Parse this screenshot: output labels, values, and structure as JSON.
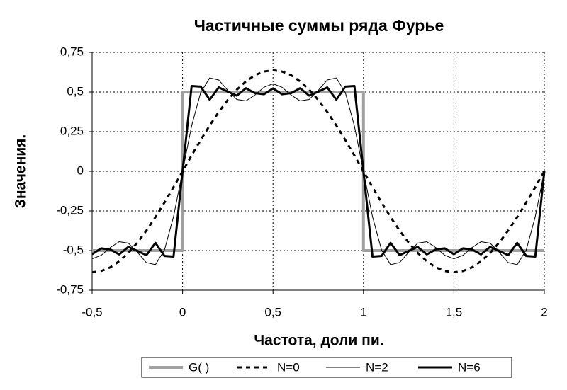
{
  "chart_data": {
    "type": "line",
    "title": "Частичные суммы ряда Фурье",
    "x_label": "Частота, доли пи.",
    "y_label": "Значения.",
    "xlim": [
      -0.5,
      2
    ],
    "ylim": [
      -0.75,
      0.75
    ],
    "xticks": [
      {
        "value": -0.5,
        "label": "-0,5"
      },
      0,
      {
        "value": 0.5,
        "label": "0,5"
      },
      1,
      {
        "value": 1.5,
        "label": "1,5"
      },
      2
    ],
    "yticks": [
      {
        "value": -0.75,
        "label": "-0,75"
      },
      {
        "value": -0.5,
        "label": "-0,5"
      },
      {
        "value": -0.25,
        "label": "-0,25"
      },
      0,
      {
        "value": 0.25,
        "label": "0,25"
      },
      {
        "value": 0.5,
        "label": "0,5"
      },
      {
        "value": 0.75,
        "label": "0,75"
      }
    ],
    "grid": true,
    "legend": "bottom",
    "x": [
      -0.5,
      -0.45,
      -0.4,
      -0.35,
      -0.3,
      -0.25,
      -0.2,
      -0.15,
      -0.1,
      -0.05,
      0,
      0.05,
      0.1,
      0.15,
      0.2,
      0.25,
      0.3,
      0.35,
      0.4,
      0.45,
      0.5,
      0.55,
      0.6,
      0.65,
      0.7,
      0.75,
      0.8,
      0.85,
      0.9,
      0.95,
      1,
      1.05,
      1.1,
      1.15,
      1.2,
      1.25,
      1.3,
      1.35,
      1.4,
      1.45,
      1.5,
      1.55,
      1.6,
      1.65,
      1.7,
      1.75,
      1.8,
      1.85,
      1.9,
      1.95,
      2
    ],
    "series": [
      {
        "name": "G(   )",
        "color": "#a0a0a0",
        "width": 4,
        "dash": "none",
        "x": [
          -0.5,
          0,
          0,
          1,
          1,
          2
        ],
        "values": [
          -0.5,
          -0.5,
          0.5,
          0.5,
          -0.5,
          -0.5
        ]
      },
      {
        "name": "N=0",
        "color": "#000000",
        "width": 3,
        "dash": "6 6",
        "values": [
          -0.637,
          -0.629,
          -0.606,
          -0.567,
          -0.515,
          -0.45,
          -0.374,
          -0.289,
          -0.197,
          -0.1,
          0,
          0.1,
          0.197,
          0.289,
          0.374,
          0.45,
          0.515,
          0.567,
          0.606,
          0.629,
          0.637,
          0.629,
          0.606,
          0.567,
          0.515,
          0.45,
          0.374,
          0.289,
          0.197,
          0.1,
          0,
          -0.1,
          -0.197,
          -0.289,
          -0.374,
          -0.45,
          -0.515,
          -0.567,
          -0.606,
          -0.629,
          -0.637,
          -0.629,
          -0.606,
          -0.567,
          -0.515,
          -0.45,
          -0.374,
          -0.289,
          -0.197,
          -0.1,
          0
        ]
      },
      {
        "name": "N=2",
        "color": "#000000",
        "width": 1,
        "dash": "none",
        "values": [
          -0.552,
          -0.53,
          -0.481,
          -0.444,
          -0.453,
          -0.51,
          -0.576,
          -0.589,
          -0.496,
          -0.286,
          0,
          0.286,
          0.496,
          0.589,
          0.576,
          0.51,
          0.453,
          0.444,
          0.481,
          0.53,
          0.552,
          0.53,
          0.481,
          0.444,
          0.453,
          0.51,
          0.576,
          0.589,
          0.496,
          0.286,
          0,
          -0.286,
          -0.496,
          -0.589,
          -0.576,
          -0.51,
          -0.453,
          -0.444,
          -0.481,
          -0.53,
          -0.552,
          -0.53,
          -0.481,
          -0.444,
          -0.453,
          -0.51,
          -0.576,
          -0.589,
          -0.496,
          -0.286,
          0
        ]
      },
      {
        "name": "N=6",
        "color": "#000000",
        "width": 3,
        "dash": "none",
        "values": [
          -0.523,
          -0.486,
          -0.493,
          -0.524,
          -0.477,
          -0.502,
          -0.529,
          -0.452,
          -0.534,
          -0.538,
          0,
          0.538,
          0.534,
          0.452,
          0.529,
          0.502,
          0.477,
          0.524,
          0.493,
          0.486,
          0.523,
          0.486,
          0.493,
          0.524,
          0.477,
          0.502,
          0.529,
          0.452,
          0.534,
          0.538,
          0,
          -0.538,
          -0.534,
          -0.452,
          -0.529,
          -0.502,
          -0.477,
          -0.524,
          -0.493,
          -0.486,
          -0.523,
          -0.486,
          -0.493,
          -0.524,
          -0.477,
          -0.502,
          -0.529,
          -0.452,
          -0.534,
          -0.538,
          0
        ]
      }
    ]
  }
}
